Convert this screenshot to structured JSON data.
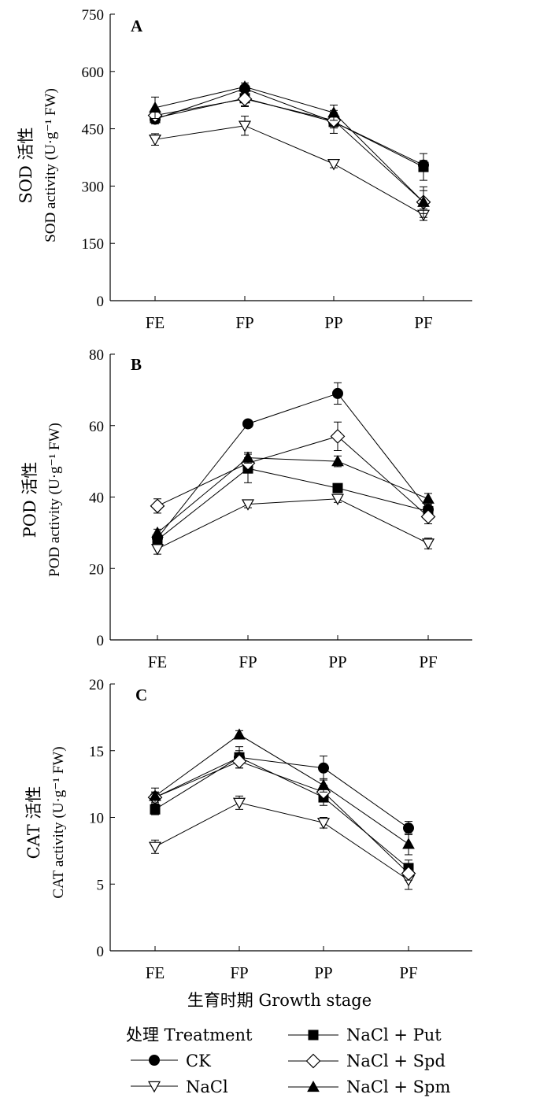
{
  "xlabel": "生育时期 Growth stage",
  "legend": {
    "title": "处理 Treatment",
    "items": [
      "CK",
      "NaCl",
      "NaCl + Put",
      "NaCl + Spd",
      "NaCl + Spm"
    ]
  },
  "colors": {
    "axis": "#000000",
    "marker_fill": "#000000",
    "open_fill": "#ffffff"
  },
  "chart_data": [
    {
      "type": "line",
      "panel_label": "A",
      "ylabel_cn": "SOD 活性",
      "ylabel_en": "SOD activity (U·g⁻¹ FW)",
      "categories": [
        "FE",
        "FP",
        "PP",
        "PF"
      ],
      "ylim": [
        0,
        750
      ],
      "yticks": [
        0,
        150,
        300,
        450,
        600,
        750
      ],
      "series": [
        {
          "name": "CK",
          "marker": "circle",
          "values": [
            475,
            555,
            468,
            355
          ],
          "errors": [
            12,
            8,
            12,
            12
          ]
        },
        {
          "name": "NaCl",
          "marker": "triangle-down-open",
          "values": [
            422,
            458,
            358,
            225
          ],
          "errors": [
            15,
            25,
            10,
            15
          ]
        },
        {
          "name": "NaCl + Put",
          "marker": "square",
          "values": [
            478,
            530,
            468,
            350
          ],
          "errors": [
            10,
            20,
            30,
            35
          ]
        },
        {
          "name": "NaCl + Spd",
          "marker": "diamond-open",
          "values": [
            485,
            528,
            472,
            258
          ],
          "errors": [
            10,
            20,
            20,
            40
          ]
        },
        {
          "name": "NaCl + Spm",
          "marker": "triangle-up",
          "values": [
            505,
            560,
            492,
            258
          ],
          "errors": [
            28,
            10,
            20,
            30
          ]
        }
      ]
    },
    {
      "type": "line",
      "panel_label": "B",
      "ylabel_cn": "POD 活性",
      "ylabel_en": "POD activity (U·g⁻¹ FW)",
      "categories": [
        "FE",
        "FP",
        "PP",
        "PF"
      ],
      "ylim": [
        0,
        80
      ],
      "yticks": [
        0,
        20,
        40,
        60,
        80
      ],
      "series": [
        {
          "name": "CK",
          "marker": "circle",
          "values": [
            28.5,
            60.5,
            69,
            36.5
          ],
          "errors": [
            1,
            0.8,
            3,
            1
          ]
        },
        {
          "name": "NaCl",
          "marker": "triangle-down-open",
          "values": [
            25.5,
            38,
            39.5,
            27
          ],
          "errors": [
            1.5,
            1,
            1,
            1.5
          ]
        },
        {
          "name": "NaCl + Put",
          "marker": "square",
          "values": [
            28,
            48,
            42.5,
            36
          ],
          "errors": [
            1,
            4,
            1,
            1
          ]
        },
        {
          "name": "NaCl + Spd",
          "marker": "diamond-open",
          "values": [
            37.5,
            49.5,
            57,
            34.5
          ],
          "errors": [
            2,
            1.5,
            4,
            2
          ]
        },
        {
          "name": "NaCl + Spm",
          "marker": "triangle-up",
          "values": [
            30,
            51,
            50,
            39.5
          ],
          "errors": [
            1,
            1.5,
            1.5,
            1.5
          ]
        }
      ]
    },
    {
      "type": "line",
      "panel_label": "C",
      "ylabel_cn": "CAT 活性",
      "ylabel_en": "CAT activity (U·g⁻¹ FW)",
      "categories": [
        "FE",
        "FP",
        "PP",
        "PF"
      ],
      "ylim": [
        0,
        20
      ],
      "yticks": [
        0,
        5,
        10,
        15,
        20
      ],
      "series": [
        {
          "name": "CK",
          "marker": "circle",
          "values": [
            11.5,
            14.5,
            13.7,
            9.2
          ],
          "errors": [
            0.4,
            0.8,
            0.9,
            0.5
          ]
        },
        {
          "name": "NaCl",
          "marker": "triangle-down-open",
          "values": [
            7.8,
            11.1,
            9.6,
            5.3
          ],
          "errors": [
            0.5,
            0.5,
            0.4,
            0.7
          ]
        },
        {
          "name": "NaCl + Put",
          "marker": "square",
          "values": [
            10.6,
            14.5,
            11.5,
            6.2
          ],
          "errors": [
            0.4,
            0.5,
            0.6,
            0.6
          ]
        },
        {
          "name": "NaCl + Spd",
          "marker": "diamond-open",
          "values": [
            11.5,
            14.2,
            11.9,
            5.8
          ],
          "errors": [
            0.4,
            0.5,
            0.5,
            0.5
          ]
        },
        {
          "name": "NaCl + Spm",
          "marker": "triangle-up",
          "values": [
            11.6,
            16.2,
            12.4,
            8.0
          ],
          "errors": [
            0.6,
            0.3,
            0.5,
            0.8
          ]
        }
      ]
    }
  ]
}
